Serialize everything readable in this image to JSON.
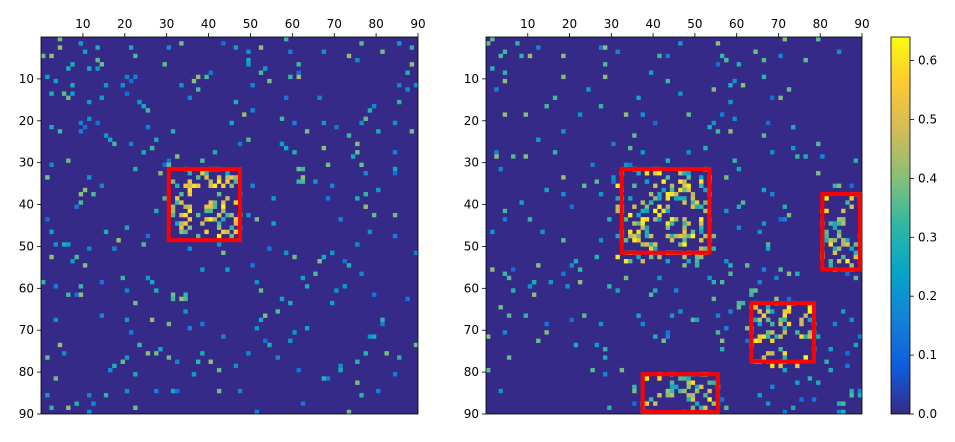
{
  "chart_data": [
    {
      "type": "heatmap",
      "title": "",
      "xlabel": "",
      "ylabel": "",
      "x_ticks": [
        10,
        20,
        30,
        40,
        50,
        60,
        70,
        80,
        90
      ],
      "y_ticks": [
        10,
        20,
        30,
        40,
        50,
        60,
        70,
        80,
        90
      ],
      "x_tick_position": "top",
      "xlim": [
        0,
        90
      ],
      "ylim": [
        90,
        0
      ],
      "matrix_size": 90,
      "structure": "sparse, approximately symmetric matrix of node-pair values; most cells 0",
      "highlight_boxes": [
        {
          "x": [
            30.5,
            47.5
          ],
          "y": [
            31.5,
            48.5
          ],
          "color": "#ff0000"
        }
      ]
    },
    {
      "type": "heatmap",
      "title": "",
      "xlabel": "",
      "ylabel": "",
      "x_ticks": [
        10,
        20,
        30,
        40,
        50,
        60,
        70,
        80,
        90
      ],
      "y_ticks": [
        10,
        20,
        30,
        40,
        50,
        60,
        70,
        80,
        90
      ],
      "x_tick_position": "top",
      "xlim": [
        0,
        90
      ],
      "ylim": [
        90,
        0
      ],
      "matrix_size": 90,
      "structure": "sparse, approximately symmetric matrix of node-pair values; most cells 0",
      "highlight_boxes": [
        {
          "x": [
            32.5,
            53.5
          ],
          "y": [
            31.5,
            51.5
          ],
          "color": "#ff0000"
        },
        {
          "x": [
            80.5,
            89.5
          ],
          "y": [
            37.5,
            55.5
          ],
          "color": "#ff0000"
        },
        {
          "x": [
            63.5,
            78.5
          ],
          "y": [
            63.5,
            77.5
          ],
          "color": "#ff0000"
        },
        {
          "x": [
            37.5,
            55.5
          ],
          "y": [
            80.5,
            89.5
          ],
          "color": "#ff0000"
        }
      ]
    }
  ],
  "colorbar": {
    "range": [
      0.0,
      0.64
    ],
    "ticks": [
      "0.0",
      "0.1",
      "0.2",
      "0.3",
      "0.4",
      "0.5",
      "0.6"
    ],
    "colormap": "parula",
    "colors": [
      "#352a87",
      "#0f5cdd",
      "#1481d6",
      "#06a4ca",
      "#2eb7a4",
      "#87bf77",
      "#d1bb59",
      "#fec832",
      "#f9fb0e"
    ]
  }
}
